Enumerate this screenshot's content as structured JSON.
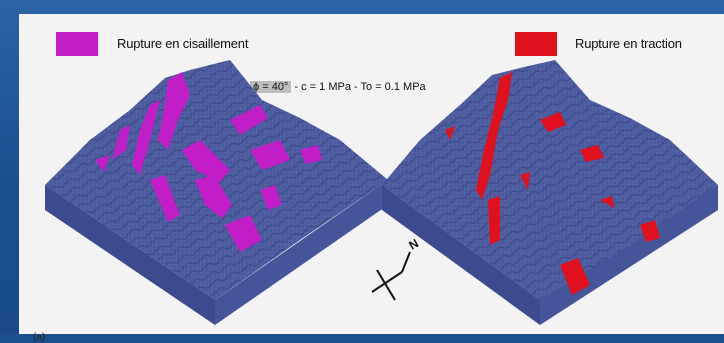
{
  "legend": {
    "left": {
      "label": "Rupture en cisaillement",
      "color": "#c21ec8"
    },
    "right": {
      "label": "Rupture en traction",
      "color": "#e0101e"
    }
  },
  "parameters": {
    "phi": "ϕ = 40°",
    "rest": " - c = 1 MPa - To = 0.1 MPa"
  },
  "compass": {
    "north_label": "N"
  },
  "caption": "(a)",
  "colors": {
    "background": "#1d4f8e",
    "panel": "#f3f3f3",
    "terrain": "#4f5ea0",
    "terrain_side": "#3e4b8c"
  }
}
